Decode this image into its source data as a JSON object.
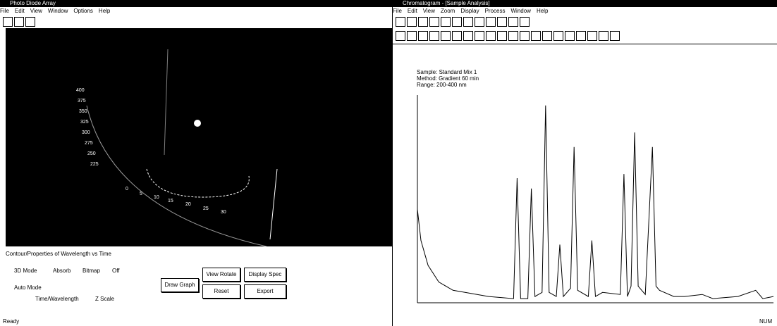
{
  "left_window": {
    "title": "Photo Diode Array",
    "menu": [
      "File",
      "Edit",
      "View",
      "Window",
      "Options",
      "Help"
    ],
    "panel_title": "Contour/Properties of Wavelength vs Time",
    "mode_label": "3D Mode",
    "mode_options": [
      "Absorb",
      "Bitmap",
      "Off"
    ],
    "axis_label": "Auto Mode",
    "axis_options": [
      "Time/Wavelength",
      "Z Scale"
    ],
    "buttons": [
      "Draw Graph",
      "View Rotate",
      "Reset",
      "Display Spec",
      "Export"
    ],
    "status": "Ready"
  },
  "right_window": {
    "title": "Chromatogram - [Sample Analysis]",
    "menu": [
      "File",
      "Edit",
      "View",
      "Zoom",
      "Display",
      "Process",
      "Window",
      "Help"
    ],
    "info_lines": [
      "Sample: Standard Mix 1",
      "Method: Gradient 60 min",
      "Range: 200-400 nm"
    ],
    "status": "NUM"
  },
  "chart_data": {
    "type": "line",
    "x": [
      0,
      1,
      3,
      6,
      10,
      20,
      27,
      28,
      29,
      31,
      32,
      33,
      35,
      36,
      37,
      39,
      40,
      41,
      43,
      44,
      45,
      48,
      49,
      50,
      52,
      57,
      58,
      59,
      60,
      61,
      62,
      64,
      66,
      67,
      68,
      72,
      75,
      80,
      83,
      90,
      95,
      97,
      100
    ],
    "values": [
      45,
      30,
      18,
      10,
      6,
      3,
      2,
      60,
      2,
      2,
      55,
      3,
      5,
      95,
      5,
      3,
      28,
      3,
      7,
      75,
      6,
      3,
      30,
      3,
      5,
      4,
      62,
      3,
      8,
      82,
      8,
      4,
      75,
      8,
      6,
      3,
      3,
      4,
      2,
      3,
      6,
      2,
      3
    ],
    "color": "#000000",
    "xlim": [
      0,
      100
    ],
    "ylim": [
      0,
      100
    ]
  }
}
